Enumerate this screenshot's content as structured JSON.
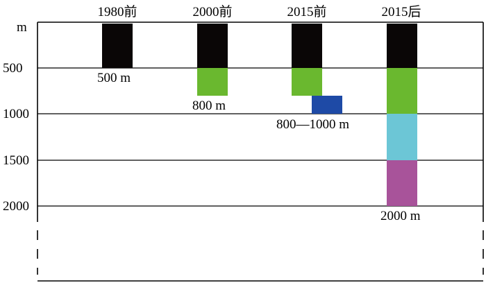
{
  "columns": [
    {
      "title": "1980前"
    },
    {
      "title": "2000前"
    },
    {
      "title": "2015前"
    },
    {
      "title": "2015后"
    }
  ],
  "y_axis": {
    "unit_label": "m",
    "ticks": [
      "500",
      "1000",
      "1500",
      "2000"
    ]
  },
  "annotations": {
    "col1": "500 m",
    "col2": "800 m",
    "col3": "800—1000 m",
    "col4": "2000 m"
  },
  "colors": {
    "depth_0_500": "#0a0606",
    "depth_500_800": "#6ab82f",
    "depth_800_1000": "#1e4aa6",
    "depth_1000_1500": "#6cc6d6",
    "depth_1500_2000": "#a8539a"
  }
}
